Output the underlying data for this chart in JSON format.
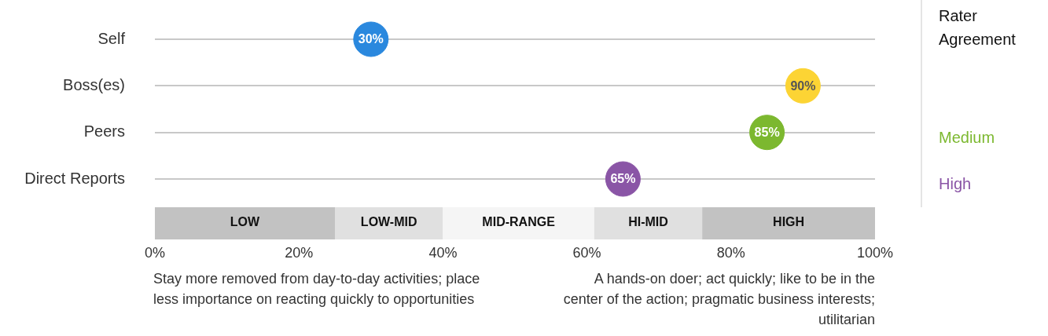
{
  "chart_data": {
    "type": "scatter",
    "orientation": "horizontal",
    "categories": [
      "Self",
      "Boss(es)",
      "Peers",
      "Direct Reports"
    ],
    "values": [
      30,
      90,
      85,
      65
    ],
    "colors": [
      "#2a88de",
      "#fcd434",
      "#7cb82f",
      "#8a55a6"
    ],
    "value_labels": [
      "30%",
      "90%",
      "85%",
      "65%"
    ],
    "xlim": [
      0,
      100
    ],
    "xticks": [
      {
        "value": 0,
        "label": "0%"
      },
      {
        "value": 20,
        "label": "20%"
      },
      {
        "value": 40,
        "label": "40%"
      },
      {
        "value": 60,
        "label": "60%"
      },
      {
        "value": 80,
        "label": "80%"
      },
      {
        "value": 100,
        "label": "100%"
      }
    ],
    "grid": "y",
    "legend": false,
    "marker": "circle",
    "bands": [
      {
        "axis": "x",
        "from": 0,
        "to": 25,
        "label": "LOW",
        "color": "#c2c2c2"
      },
      {
        "axis": "x",
        "from": 25,
        "to": 40,
        "label": "LOW-MID",
        "color": "#e0e0e0"
      },
      {
        "axis": "x",
        "from": 40,
        "to": 61,
        "label": "MID-RANGE",
        "color": "#f5f5f5"
      },
      {
        "axis": "x",
        "from": 61,
        "to": 76,
        "label": "HI-MID",
        "color": "#e0e0e0"
      },
      {
        "axis": "x",
        "from": 76,
        "to": 100,
        "label": "HIGH",
        "color": "#c2c2c2"
      }
    ],
    "annotations": [
      "Rater Agreement",
      "Medium",
      "High",
      "Stay more removed from day-to-day activities; place less importance on reacting quickly to opportunities",
      "A hands-on doer; act quickly; like to be in the center of the action; pragmatic business interests; utilitarian"
    ]
  }
}
